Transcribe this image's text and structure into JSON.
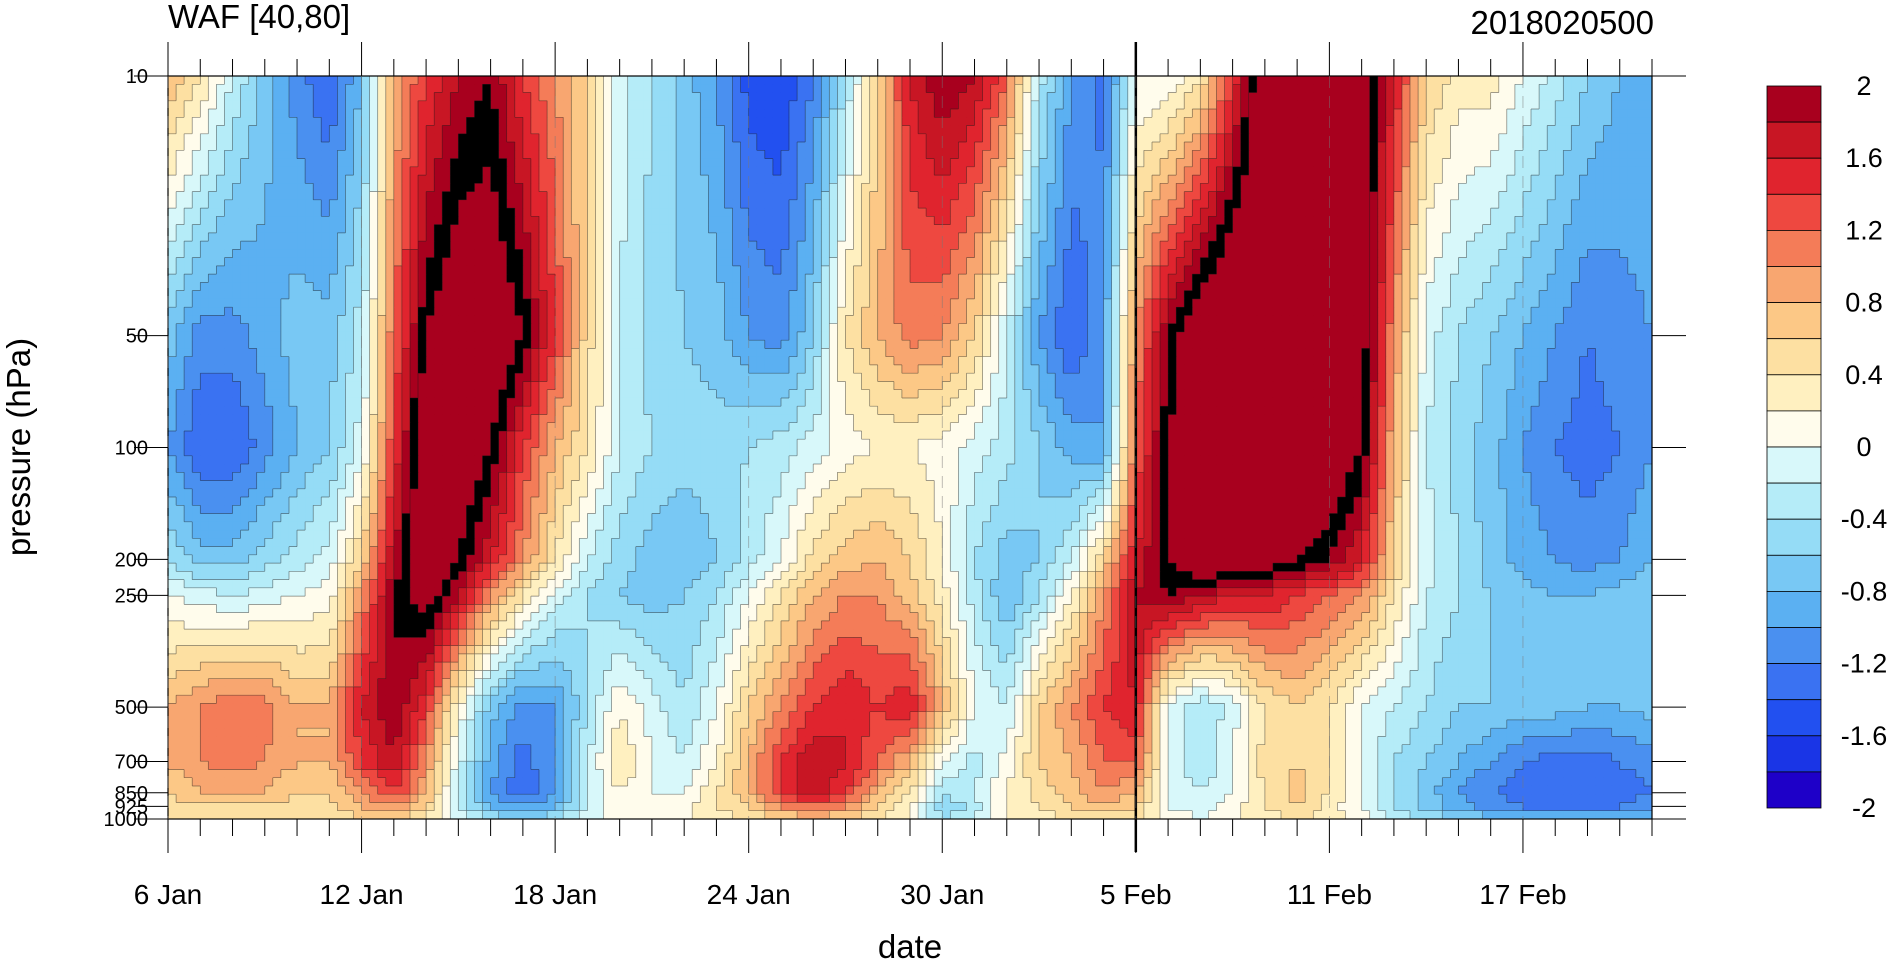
{
  "chart_data": {
    "type": "heatmap",
    "title_left": "WAF [40,80]",
    "title_right": "2018020500",
    "xlabel": "date",
    "ylabel": "pressure (hPa)",
    "x_dates": [
      "6 Jan",
      "7 Jan",
      "8 Jan",
      "9 Jan",
      "10 Jan",
      "11 Jan",
      "12 Jan",
      "13 Jan",
      "14 Jan",
      "15 Jan",
      "16 Jan",
      "17 Jan",
      "18 Jan",
      "19 Jan",
      "20 Jan",
      "21 Jan",
      "22 Jan",
      "23 Jan",
      "24 Jan",
      "25 Jan",
      "26 Jan",
      "27 Jan",
      "28 Jan",
      "29 Jan",
      "30 Jan",
      "31 Jan",
      "1 Feb",
      "2 Feb",
      "3 Feb",
      "4 Feb",
      "5 Feb",
      "6 Feb",
      "7 Feb",
      "8 Feb",
      "9 Feb",
      "10 Feb",
      "11 Feb",
      "12 Feb",
      "13 Feb",
      "14 Feb",
      "15 Feb",
      "16 Feb",
      "17 Feb",
      "18 Feb",
      "19 Feb",
      "20 Feb",
      "21 Feb"
    ],
    "x_tick_labels": [
      "6 Jan",
      "12 Jan",
      "18 Jan",
      "24 Jan",
      "30 Jan",
      "5 Feb",
      "11 Feb",
      "17 Feb"
    ],
    "y_levels": [
      10,
      50,
      100,
      200,
      250,
      500,
      700,
      850,
      925,
      1000
    ],
    "y_tick_labels": [
      "10",
      "50",
      "100",
      "200",
      "250",
      "500",
      "700",
      "850",
      "925",
      "1000"
    ],
    "y_scale": "log",
    "ylim": [
      1000,
      10
    ],
    "vertical_marker_date": "5 Feb",
    "colorbar": {
      "levels": [
        -2.2,
        -2.0,
        -1.8,
        -1.6,
        -1.4,
        -1.2,
        -1.0,
        -0.8,
        -0.6,
        -0.4,
        -0.2,
        0.0,
        0.2,
        0.4,
        0.6,
        0.8,
        1.0,
        1.2,
        1.4,
        1.6,
        1.8,
        2.0,
        2.2
      ],
      "colors": [
        "#1e00c8",
        "#1a35e6",
        "#2250f0",
        "#3a72f2",
        "#4a90f0",
        "#5bb0f2",
        "#78c8f4",
        "#95dcf6",
        "#b5ecf8",
        "#d8f8fa",
        "#fffcec",
        "#fff0c0",
        "#fde0a2",
        "#fcc886",
        "#f8a670",
        "#f47c58",
        "#ee4840",
        "#e0242e",
        "#c81624",
        "#a8001e"
      ],
      "tick_labels": [
        "2",
        "1.6",
        "1.2",
        "0.8",
        "0.4",
        "0",
        "-0.4",
        "-0.8",
        "-1.2",
        "-1.6",
        "-2"
      ],
      "tick_values": [
        2,
        1.6,
        1.2,
        0.8,
        0.4,
        0,
        -0.4,
        -0.8,
        -1.2,
        -1.6,
        -2
      ]
    },
    "values_by_level": {
      "10": [
        0.6,
        0.2,
        -0.4,
        -0.9,
        -1.3,
        -1.6,
        -1.0,
        0.6,
        1.2,
        1.6,
        1.8,
        1.2,
        0.8,
        0.4,
        -0.3,
        -0.6,
        -0.9,
        -1.2,
        -1.7,
        -1.8,
        -1.4,
        -0.6,
        0.4,
        1.4,
        1.8,
        1.6,
        1.0,
        -0.5,
        -1.2,
        -1.5,
        -0.2,
        -0.2,
        0.2,
        1.2,
        2.4,
        2.6,
        2.6,
        2.2,
        1.4,
        0.4,
        0.1,
        0.1,
        -0.2,
        -0.5,
        -0.8,
        -1.0,
        -1.0
      ],
      "50": [
        -0.9,
        -1.3,
        -1.3,
        -1.1,
        -0.9,
        -0.9,
        -0.5,
        1.0,
        2.0,
        2.4,
        2.4,
        2.0,
        1.2,
        0.3,
        -0.4,
        -0.7,
        -0.8,
        -0.9,
        -1.2,
        -1.3,
        -0.8,
        0.2,
        0.6,
        0.9,
        0.8,
        0.4,
        -0.4,
        -1.2,
        -1.6,
        -1.2,
        0.8,
        1.8,
        2.4,
        2.6,
        2.6,
        2.6,
        2.6,
        2.2,
        0.8,
        -0.3,
        -0.6,
        -0.8,
        -1.0,
        -1.2,
        -1.4,
        -1.3,
        -1.2
      ],
      "100": [
        -1.2,
        -1.6,
        -1.6,
        -1.3,
        -1.0,
        -0.8,
        -0.3,
        1.2,
        2.4,
        2.4,
        2.0,
        1.2,
        0.6,
        0.2,
        -0.4,
        -0.6,
        -0.7,
        -0.7,
        -0.6,
        -0.5,
        -0.3,
        -0.1,
        0.0,
        0.0,
        -0.1,
        -0.3,
        -0.5,
        -0.8,
        -1.1,
        -1.2,
        1.0,
        2.0,
        2.4,
        2.6,
        2.6,
        2.6,
        2.4,
        2.0,
        0.6,
        -0.4,
        -0.7,
        -0.9,
        -1.2,
        -1.4,
        -1.5,
        -1.4,
        -1.2
      ],
      "200": [
        -0.6,
        -0.9,
        -0.9,
        -0.7,
        -0.5,
        -0.3,
        0.4,
        1.6,
        2.4,
        2.0,
        1.4,
        0.8,
        0.2,
        -0.4,
        -0.7,
        -0.9,
        -1.0,
        -0.8,
        -0.5,
        -0.2,
        0.3,
        0.5,
        0.6,
        0.4,
        0.0,
        -0.6,
        -0.9,
        -0.8,
        -0.4,
        0.4,
        1.4,
        2.0,
        2.4,
        2.4,
        2.2,
        2.0,
        1.8,
        1.4,
        0.4,
        -0.3,
        -0.6,
        -0.9,
        -1.1,
        -1.2,
        -1.3,
        -1.2,
        -1.0
      ],
      "250": [
        -0.2,
        -0.3,
        -0.4,
        -0.3,
        -0.2,
        -0.1,
        0.8,
        1.8,
        2.2,
        1.6,
        0.8,
        0.2,
        -0.3,
        -0.6,
        -0.8,
        -0.9,
        -0.8,
        -0.6,
        -0.2,
        0.2,
        0.6,
        0.8,
        0.8,
        0.5,
        0.1,
        -0.5,
        -1.0,
        -0.6,
        0.0,
        0.8,
        1.6,
        1.8,
        1.6,
        1.4,
        1.4,
        1.2,
        1.0,
        0.8,
        0.2,
        -0.4,
        -0.6,
        -0.8,
        -0.9,
        -1.0,
        -1.0,
        -0.9,
        -0.8
      ],
      "500": [
        0.6,
        0.8,
        1.0,
        0.9,
        0.6,
        0.6,
        1.4,
        1.8,
        1.2,
        0.0,
        -0.9,
        -1.3,
        -1.2,
        -0.6,
        0.0,
        -0.3,
        -0.6,
        -0.2,
        0.4,
        0.8,
        1.2,
        1.4,
        1.2,
        1.4,
        0.6,
        -0.2,
        -0.4,
        0.4,
        0.8,
        1.2,
        1.4,
        -0.2,
        -0.6,
        -0.3,
        0.2,
        0.4,
        0.2,
        -0.2,
        -0.4,
        -0.6,
        -0.8,
        -0.8,
        -0.9,
        -0.9,
        -1.0,
        -1.0,
        -0.9
      ],
      "700": [
        0.6,
        0.8,
        0.9,
        0.8,
        0.6,
        0.6,
        1.2,
        1.6,
        0.8,
        -0.3,
        -1.1,
        -1.5,
        -1.2,
        -0.4,
        0.2,
        -0.2,
        -0.4,
        0.0,
        0.6,
        1.2,
        1.6,
        1.4,
        1.0,
        0.6,
        -0.2,
        -0.5,
        -0.1,
        0.4,
        0.6,
        1.0,
        1.0,
        -0.2,
        -0.6,
        -0.2,
        0.3,
        0.4,
        0.2,
        -0.2,
        -0.6,
        -0.8,
        -1.0,
        -1.2,
        -1.4,
        -1.5,
        -1.5,
        -1.4,
        -1.3
      ],
      "850": [
        0.4,
        0.6,
        0.6,
        0.6,
        0.4,
        0.4,
        0.8,
        1.2,
        0.6,
        -0.4,
        -1.2,
        -1.6,
        -1.2,
        -0.4,
        0.0,
        -0.2,
        -0.2,
        0.2,
        0.6,
        1.2,
        1.6,
        1.2,
        0.6,
        0.2,
        -0.6,
        -0.4,
        0.0,
        0.3,
        0.5,
        0.8,
        0.6,
        -0.2,
        -0.4,
        -0.2,
        0.2,
        0.5,
        0.2,
        -0.2,
        -0.6,
        -0.9,
        -1.2,
        -1.4,
        -1.5,
        -1.6,
        -1.6,
        -1.5,
        -1.4
      ],
      "925": [
        0.3,
        0.4,
        0.4,
        0.4,
        0.3,
        0.3,
        0.6,
        0.8,
        0.4,
        -0.4,
        -1.0,
        -1.2,
        -1.0,
        -0.4,
        0.0,
        -0.1,
        -0.1,
        0.2,
        0.4,
        0.8,
        1.0,
        0.8,
        0.4,
        0.0,
        -0.8,
        -0.5,
        0.0,
        0.2,
        0.4,
        0.6,
        0.4,
        -0.2,
        -0.3,
        -0.1,
        0.2,
        0.4,
        0.1,
        -0.2,
        -0.6,
        -0.9,
        -1.1,
        -1.3,
        -1.4,
        -1.5,
        -1.5,
        -1.4,
        -1.3
      ],
      "1000": [
        0.2,
        0.2,
        0.2,
        0.2,
        0.2,
        0.2,
        0.4,
        0.5,
        0.2,
        -0.3,
        -0.6,
        -0.8,
        -0.6,
        -0.3,
        0.0,
        0.0,
        0.0,
        0.1,
        0.2,
        0.4,
        0.5,
        0.4,
        0.2,
        0.0,
        -0.6,
        -0.4,
        0.0,
        0.1,
        0.2,
        0.3,
        0.2,
        -0.1,
        -0.2,
        0.0,
        0.1,
        0.2,
        0.1,
        -0.1,
        -0.4,
        -0.6,
        -0.8,
        -0.9,
        -1.0,
        -1.0,
        -1.0,
        -1.0,
        -0.9
      ]
    }
  }
}
